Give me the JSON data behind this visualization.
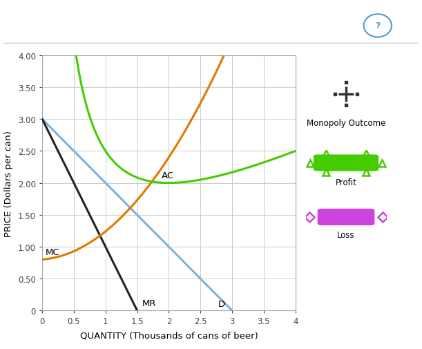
{
  "xlabel": "QUANTITY (Thousands of cans of beer)",
  "ylabel": "PRICE (Dollars per can)",
  "xlim": [
    0,
    4.0
  ],
  "ylim": [
    0,
    4.0
  ],
  "xticks": [
    0,
    0.5,
    1.0,
    1.5,
    2.0,
    2.5,
    3.0,
    3.5,
    4.0
  ],
  "yticks": [
    0,
    0.5,
    1.0,
    1.5,
    2.0,
    2.5,
    3.0,
    3.5,
    4.0
  ],
  "demand_color": "#7ab3e0",
  "mr_color": "#222222",
  "mc_color": "#e07800",
  "ac_color": "#44cc00",
  "background_color": "#ffffff",
  "grid_color": "#cccccc",
  "label_mc": "MC",
  "label_mr": "MR",
  "label_d": "D",
  "label_ac": "AC",
  "legend_monopoly": "Monopoly Outcome",
  "legend_profit": "Profit",
  "legend_loss": "Loss",
  "profit_color": "#44cc00",
  "loss_color": "#cc44dd",
  "loss_outline": "#cc44dd",
  "figsize": [
    6.11,
    5.06
  ],
  "dpi": 100
}
